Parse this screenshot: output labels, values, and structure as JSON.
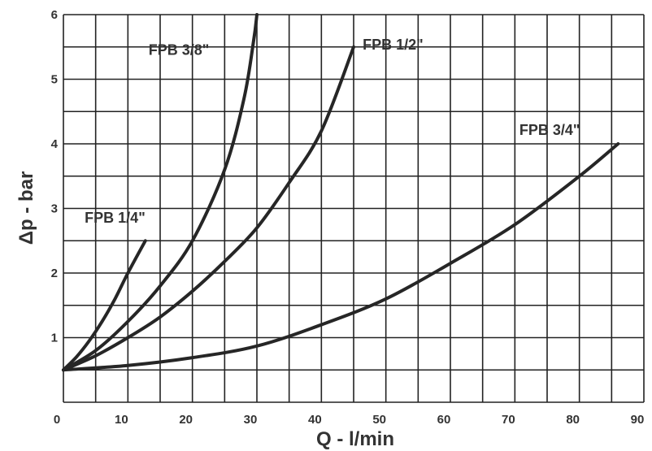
{
  "chart_data": {
    "type": "line",
    "title": "",
    "xlabel": "Q - l/min",
    "ylabel": "Δp - bar",
    "xlim": [
      0,
      90
    ],
    "ylim": [
      0,
      6
    ],
    "xticks": [
      0,
      10,
      20,
      30,
      40,
      50,
      60,
      70,
      80,
      90
    ],
    "yticks": [
      1,
      2,
      3,
      4,
      5,
      6
    ],
    "x_grid_step": 5,
    "y_grid_step": 0.5,
    "grid": true,
    "legend": "none (series labelled inline)",
    "series": [
      {
        "name": "FPB 1/4\"",
        "color": "#262626",
        "x": [
          0,
          2,
          4,
          6,
          8,
          10,
          12.7
        ],
        "y": [
          0.5,
          0.7,
          0.95,
          1.25,
          1.6,
          2.0,
          2.5
        ]
      },
      {
        "name": "FPB 3/8\"",
        "color": "#262626",
        "x": [
          0,
          5,
          10,
          15,
          20,
          25,
          28,
          29.5,
          30
        ],
        "y": [
          0.5,
          0.8,
          1.25,
          1.8,
          2.5,
          3.6,
          4.7,
          5.6,
          6.0
        ]
      },
      {
        "name": "FPB 1/2\"",
        "color": "#262626",
        "x": [
          0,
          5,
          10,
          15,
          20,
          25,
          30,
          35,
          40,
          45
        ],
        "y": [
          0.5,
          0.72,
          1.0,
          1.32,
          1.72,
          2.18,
          2.7,
          3.4,
          4.2,
          5.5
        ]
      },
      {
        "name": "FPB 3/4\"",
        "color": "#262626",
        "x": [
          0,
          10,
          20,
          30,
          40,
          50,
          60,
          70,
          80,
          86
        ],
        "y": [
          0.5,
          0.57,
          0.69,
          0.87,
          1.2,
          1.6,
          2.15,
          2.75,
          3.5,
          4.0
        ]
      }
    ],
    "annotations": [
      {
        "text": "FPB 1/4\"",
        "x": 3.3,
        "y": 2.78
      },
      {
        "text": "FPB 3/8\"",
        "x": 13.2,
        "y": 5.38
      },
      {
        "text": "FPB 1/2\"",
        "x": 46.4,
        "y": 5.46
      },
      {
        "text": "FPB 3/4\"",
        "x": 70.7,
        "y": 4.14
      }
    ]
  }
}
